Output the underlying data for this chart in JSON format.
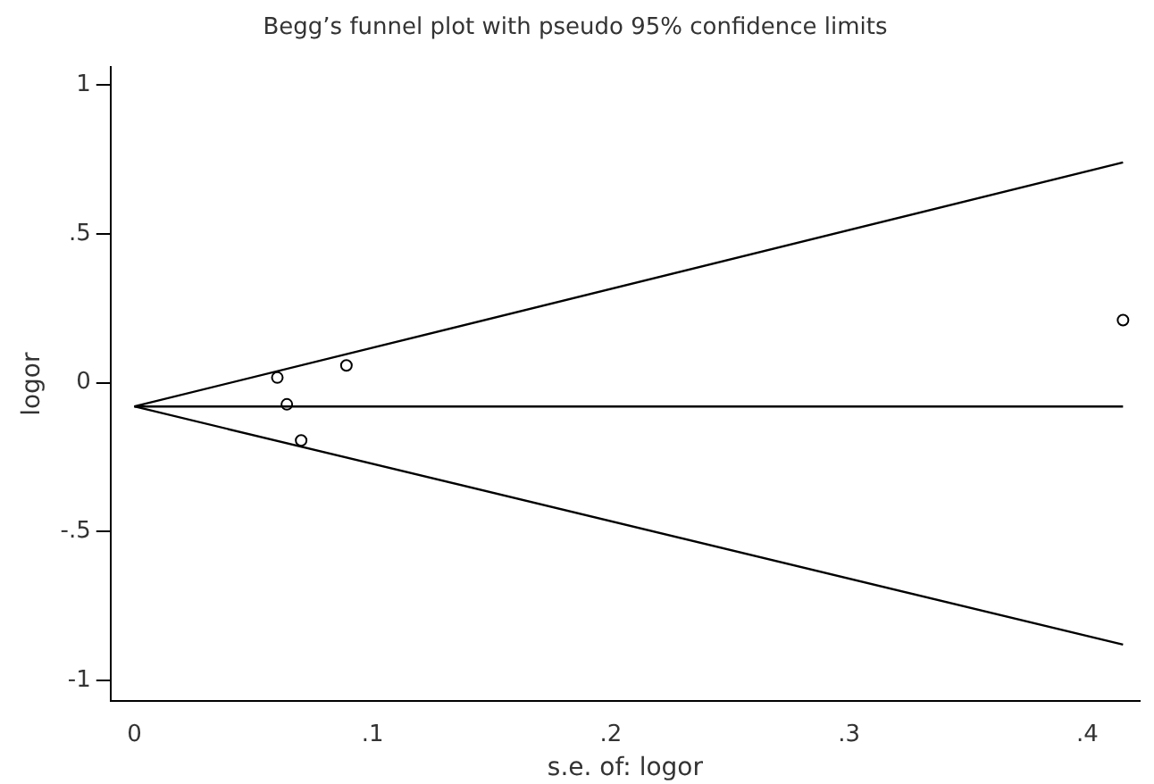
{
  "chart_data": {
    "type": "scatter",
    "title": "Begg’s funnel plot with pseudo 95% confidence limits",
    "xlabel": "s.e. of: logor",
    "ylabel": "logor",
    "xlim": [
      -0.01,
      0.422
    ],
    "ylim": [
      -1.07,
      1.06
    ],
    "xticks": [
      0,
      {
        "value": 0.1,
        "label": ".1"
      },
      {
        "value": 0.2,
        "label": ".2"
      },
      {
        "value": 0.3,
        "label": ".3"
      },
      {
        "value": 0.4,
        "label": ".4"
      }
    ],
    "yticks": [
      -1,
      {
        "value": -0.5,
        "label": "-.5"
      },
      0,
      {
        "value": 0.5,
        "label": ".5"
      },
      1
    ],
    "grid": false,
    "legend": false,
    "marker": "circle",
    "series": [
      {
        "type": "line",
        "color": "#000000",
        "marker": "none",
        "x": [
          0,
          0.415
        ],
        "values": [
          -0.08,
          0.74
        ]
      },
      {
        "type": "line",
        "color": "#000000",
        "marker": "none",
        "x": [
          0,
          0.415
        ],
        "values": [
          -0.08,
          -0.08
        ]
      },
      {
        "type": "line",
        "color": "#000000",
        "marker": "none",
        "x": [
          0,
          0.415
        ],
        "values": [
          -0.08,
          -0.88
        ]
      },
      {
        "color": "#000000",
        "x": [
          0.06,
          0.089,
          0.064,
          0.07,
          0.415
        ],
        "values": [
          0.017,
          0.058,
          -0.073,
          -0.194,
          0.21
        ]
      }
    ]
  }
}
